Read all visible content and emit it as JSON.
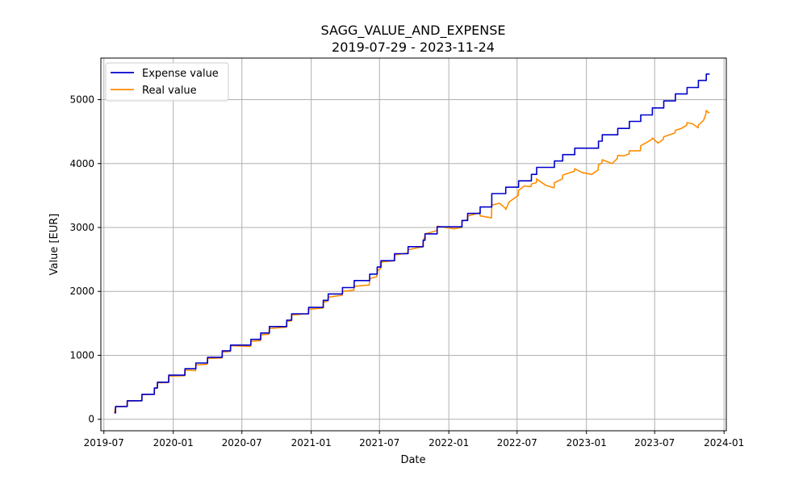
{
  "chart_data": {
    "type": "line",
    "title": "SAGG_VALUE_AND_EXPENSE",
    "subtitle": "2019-07-29 - 2023-11-24",
    "xlabel": "Date",
    "ylabel": "Value [EUR]",
    "xlim": [
      "2019-06-23",
      "2024-01-07"
    ],
    "ylim": [
      -180,
      5650
    ],
    "grid": true,
    "legend_position": "top-left",
    "x_ticks": [
      "2019-07",
      "2020-01",
      "2020-07",
      "2021-01",
      "2021-07",
      "2022-01",
      "2022-07",
      "2023-01",
      "2023-07",
      "2024-01"
    ],
    "y_ticks": [
      0,
      1000,
      2000,
      3000,
      4000,
      5000
    ],
    "series": [
      {
        "name": "Expense value",
        "color": "#0000cd",
        "style": "step",
        "points": [
          [
            "2019-07-29",
            100
          ],
          [
            "2019-08-01",
            200
          ],
          [
            "2019-09-01",
            290
          ],
          [
            "2019-10-10",
            390
          ],
          [
            "2019-11-12",
            490
          ],
          [
            "2019-11-20",
            580
          ],
          [
            "2019-12-20",
            690
          ],
          [
            "2020-02-01",
            790
          ],
          [
            "2020-03-01",
            880
          ],
          [
            "2020-04-01",
            970
          ],
          [
            "2020-05-10",
            1070
          ],
          [
            "2020-06-01",
            1160
          ],
          [
            "2020-07-25",
            1250
          ],
          [
            "2020-08-20",
            1350
          ],
          [
            "2020-09-12",
            1450
          ],
          [
            "2020-10-28",
            1550
          ],
          [
            "2020-11-10",
            1650
          ],
          [
            "2020-12-25",
            1750
          ],
          [
            "2021-02-02",
            1860
          ],
          [
            "2021-02-15",
            1960
          ],
          [
            "2021-03-25",
            2060
          ],
          [
            "2021-04-25",
            2170
          ],
          [
            "2021-06-05",
            2270
          ],
          [
            "2021-06-25",
            2380
          ],
          [
            "2021-07-05",
            2480
          ],
          [
            "2021-08-10",
            2590
          ],
          [
            "2021-09-15",
            2700
          ],
          [
            "2021-10-25",
            2800
          ],
          [
            "2021-10-30",
            2900
          ],
          [
            "2021-12-01",
            3010
          ],
          [
            "2022-02-05",
            3110
          ],
          [
            "2022-02-20",
            3220
          ],
          [
            "2022-03-25",
            3320
          ],
          [
            "2022-04-25",
            3530
          ],
          [
            "2022-06-01",
            3630
          ],
          [
            "2022-07-05",
            3730
          ],
          [
            "2022-08-08",
            3830
          ],
          [
            "2022-08-22",
            3940
          ],
          [
            "2022-10-08",
            4040
          ],
          [
            "2022-10-30",
            4140
          ],
          [
            "2022-12-01",
            4240
          ],
          [
            "2023-02-02",
            4350
          ],
          [
            "2023-02-12",
            4450
          ],
          [
            "2023-03-25",
            4550
          ],
          [
            "2023-04-25",
            4660
          ],
          [
            "2023-05-25",
            4760
          ],
          [
            "2023-06-25",
            4870
          ],
          [
            "2023-07-25",
            4980
          ],
          [
            "2023-08-25",
            5090
          ],
          [
            "2023-09-25",
            5190
          ],
          [
            "2023-10-25",
            5300
          ],
          [
            "2023-11-15",
            5400
          ],
          [
            "2023-11-24",
            5400
          ]
        ]
      },
      {
        "name": "Real value",
        "color": "#ff8c00",
        "style": "line",
        "points": [
          [
            "2019-07-29",
            100
          ],
          [
            "2019-08-01",
            195
          ],
          [
            "2019-08-31",
            200
          ],
          [
            "2019-09-01",
            285
          ],
          [
            "2019-10-09",
            290
          ],
          [
            "2019-10-10",
            385
          ],
          [
            "2019-11-11",
            390
          ],
          [
            "2019-11-12",
            480
          ],
          [
            "2019-11-19",
            485
          ],
          [
            "2019-11-20",
            570
          ],
          [
            "2019-12-19",
            575
          ],
          [
            "2019-12-20",
            675
          ],
          [
            "2020-01-31",
            680
          ],
          [
            "2020-02-01",
            770
          ],
          [
            "2020-02-29",
            760
          ],
          [
            "2020-03-01",
            850
          ],
          [
            "2020-03-31",
            860
          ],
          [
            "2020-04-01",
            950
          ],
          [
            "2020-05-09",
            960
          ],
          [
            "2020-05-10",
            1050
          ],
          [
            "2020-05-31",
            1060
          ],
          [
            "2020-06-01",
            1150
          ],
          [
            "2020-07-24",
            1140
          ],
          [
            "2020-07-25",
            1220
          ],
          [
            "2020-08-19",
            1230
          ],
          [
            "2020-08-20",
            1320
          ],
          [
            "2020-09-11",
            1330
          ],
          [
            "2020-09-12",
            1420
          ],
          [
            "2020-10-27",
            1440
          ],
          [
            "2020-10-28",
            1530
          ],
          [
            "2020-11-09",
            1540
          ],
          [
            "2020-11-10",
            1630
          ],
          [
            "2020-12-24",
            1650
          ],
          [
            "2020-12-25",
            1720
          ],
          [
            "2021-02-01",
            1740
          ],
          [
            "2021-02-02",
            1830
          ],
          [
            "2021-02-14",
            1850
          ],
          [
            "2021-02-15",
            1910
          ],
          [
            "2021-03-24",
            1940
          ],
          [
            "2021-03-25",
            2000
          ],
          [
            "2021-04-24",
            2020
          ],
          [
            "2021-04-25",
            2080
          ],
          [
            "2021-06-04",
            2100
          ],
          [
            "2021-06-05",
            2200
          ],
          [
            "2021-06-24",
            2230
          ],
          [
            "2021-06-25",
            2320
          ],
          [
            "2021-07-04",
            2360
          ],
          [
            "2021-07-05",
            2460
          ],
          [
            "2021-08-09",
            2480
          ],
          [
            "2021-08-10",
            2570
          ],
          [
            "2021-09-14",
            2600
          ],
          [
            "2021-09-15",
            2650
          ],
          [
            "2021-10-24",
            2700
          ],
          [
            "2021-10-25",
            2800
          ],
          [
            "2021-10-29",
            2850
          ],
          [
            "2021-10-30",
            2900
          ],
          [
            "2021-11-30",
            2950
          ],
          [
            "2021-12-01",
            3020
          ],
          [
            "2022-01-15",
            2980
          ],
          [
            "2022-02-04",
            3000
          ],
          [
            "2022-02-05",
            3100
          ],
          [
            "2022-02-19",
            3120
          ],
          [
            "2022-02-20",
            3180
          ],
          [
            "2022-03-24",
            3230
          ],
          [
            "2022-03-25",
            3180
          ],
          [
            "2022-04-24",
            3150
          ],
          [
            "2022-04-25",
            3350
          ],
          [
            "2022-05-15",
            3380
          ],
          [
            "2022-05-31",
            3300
          ],
          [
            "2022-06-01",
            3280
          ],
          [
            "2022-06-10",
            3400
          ],
          [
            "2022-07-04",
            3500
          ],
          [
            "2022-07-05",
            3580
          ],
          [
            "2022-07-20",
            3650
          ],
          [
            "2022-08-07",
            3640
          ],
          [
            "2022-08-08",
            3680
          ],
          [
            "2022-08-21",
            3700
          ],
          [
            "2022-08-22",
            3760
          ],
          [
            "2022-09-15",
            3660
          ],
          [
            "2022-10-07",
            3620
          ],
          [
            "2022-10-08",
            3700
          ],
          [
            "2022-10-29",
            3760
          ],
          [
            "2022-10-30",
            3820
          ],
          [
            "2022-11-30",
            3880
          ],
          [
            "2022-12-01",
            3920
          ],
          [
            "2022-12-20",
            3860
          ],
          [
            "2023-01-15",
            3830
          ],
          [
            "2023-02-01",
            3900
          ],
          [
            "2023-02-02",
            3980
          ],
          [
            "2023-02-11",
            4010
          ],
          [
            "2023-02-12",
            4060
          ],
          [
            "2023-03-10",
            4000
          ],
          [
            "2023-03-24",
            4080
          ],
          [
            "2023-03-25",
            4130
          ],
          [
            "2023-04-10",
            4120
          ],
          [
            "2023-04-24",
            4150
          ],
          [
            "2023-04-25",
            4200
          ],
          [
            "2023-05-24",
            4200
          ],
          [
            "2023-05-25",
            4280
          ],
          [
            "2023-06-10",
            4330
          ],
          [
            "2023-06-24",
            4380
          ],
          [
            "2023-06-25",
            4400
          ],
          [
            "2023-07-10",
            4320
          ],
          [
            "2023-07-24",
            4380
          ],
          [
            "2023-07-25",
            4420
          ],
          [
            "2023-08-24",
            4480
          ],
          [
            "2023-08-25",
            4520
          ],
          [
            "2023-09-10",
            4550
          ],
          [
            "2023-09-24",
            4600
          ],
          [
            "2023-09-25",
            4640
          ],
          [
            "2023-10-10",
            4620
          ],
          [
            "2023-10-24",
            4560
          ],
          [
            "2023-10-25",
            4600
          ],
          [
            "2023-11-08",
            4680
          ],
          [
            "2023-11-14",
            4780
          ],
          [
            "2023-11-15",
            4830
          ],
          [
            "2023-11-20",
            4800
          ],
          [
            "2023-11-24",
            4800
          ]
        ]
      }
    ]
  }
}
